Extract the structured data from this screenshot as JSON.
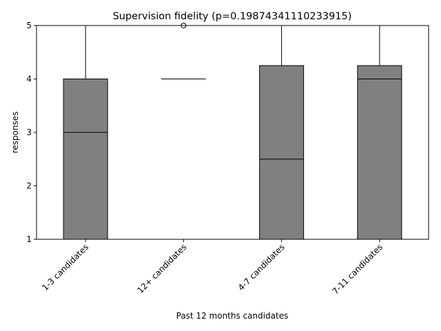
{
  "chart_data": {
    "type": "box",
    "title": "Supervision fidelity (p=0.19874341110233915)",
    "xlabel": "Past 12 months candidates",
    "ylabel": "responses",
    "ylim": [
      1,
      5
    ],
    "yticks": [
      1,
      2,
      3,
      4,
      5
    ],
    "grid": false,
    "categories": [
      "1-3 candidates",
      "12+ candidates",
      "4-7 candidates",
      "7-11 candidates"
    ],
    "boxes": [
      {
        "whislo": 1,
        "q1": 1,
        "med": 3,
        "q3": 4,
        "whishi": 5,
        "fliers": []
      },
      {
        "whislo": 4,
        "q1": 4,
        "med": 4,
        "q3": 4,
        "whishi": 4,
        "fliers": [
          5
        ]
      },
      {
        "whislo": 1,
        "q1": 1,
        "med": 2.5,
        "q3": 4.25,
        "whishi": 5,
        "fliers": []
      },
      {
        "whislo": 1,
        "q1": 1,
        "med": 4,
        "q3": 4.25,
        "whishi": 5,
        "fliers": []
      }
    ],
    "box_color": "#808080",
    "line_color": "#000000"
  }
}
